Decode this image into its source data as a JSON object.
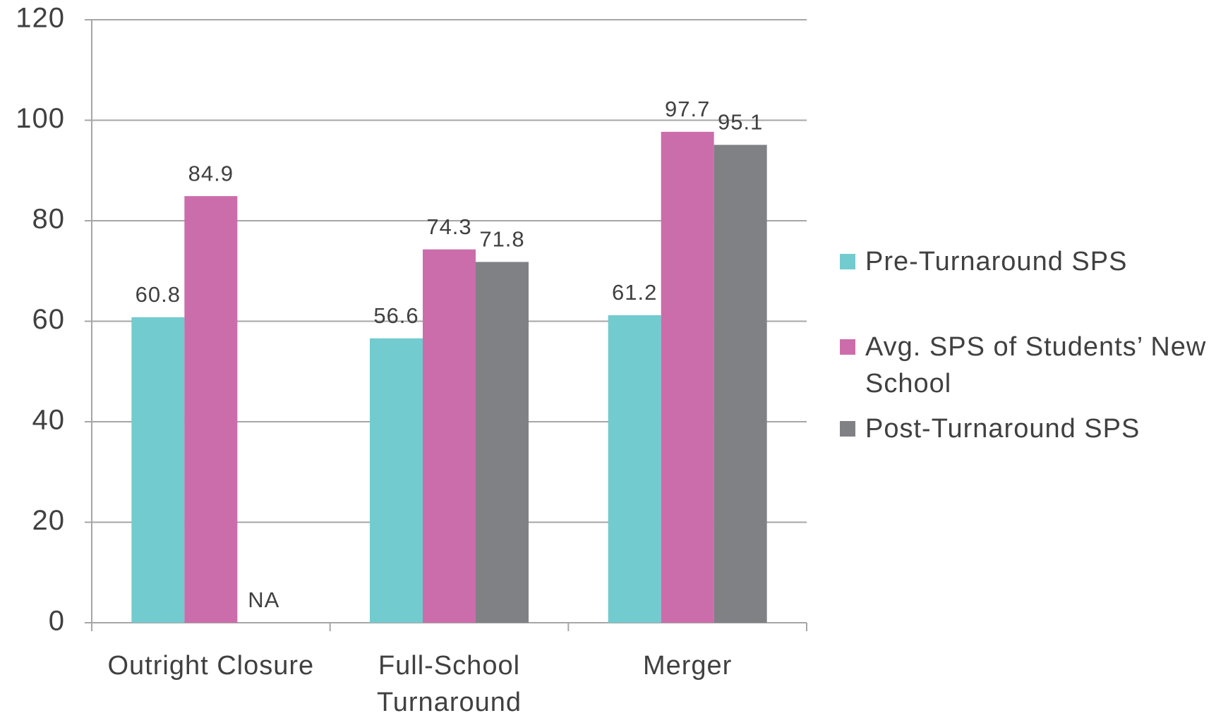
{
  "chart_data": {
    "type": "bar",
    "categories": [
      "Outright Closure",
      "Full-School Turnaround",
      "Merger"
    ],
    "series": [
      {
        "name": "Pre-Turnaround SPS",
        "color": "#72cbcf",
        "values": [
          60.8,
          56.6,
          61.2
        ]
      },
      {
        "name": "Avg. SPS of Students’ New School",
        "color": "#cc6dab",
        "values": [
          84.9,
          74.3,
          97.7
        ]
      },
      {
        "name": "Post-Turnaround SPS",
        "color": "#808184",
        "values": [
          null,
          71.8,
          95.1
        ],
        "value_labels": [
          "NA",
          "71.8",
          "95.1"
        ]
      }
    ],
    "ylim": [
      0,
      120
    ],
    "yticks": [
      0,
      20,
      40,
      60,
      80,
      100,
      120
    ],
    "grid": true,
    "legend": "right"
  }
}
